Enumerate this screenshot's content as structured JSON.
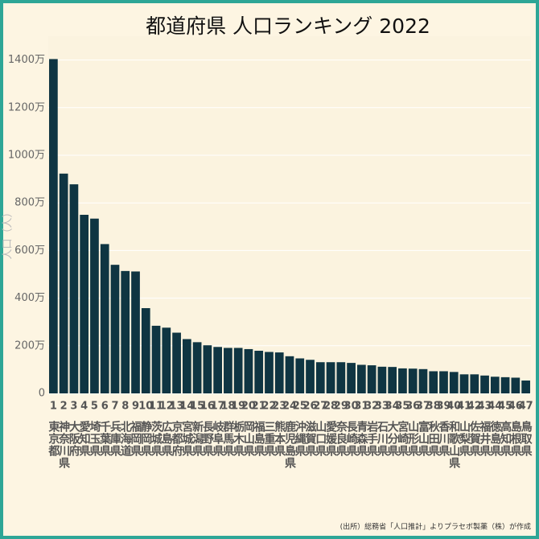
{
  "chart_data": {
    "type": "bar",
    "title": "都道府県 人口ランキング 2022",
    "y_label": "人口（人）",
    "source": "(出所）総務省「人口推計」よりプラセボ製薬（株）が作成",
    "ranks": [
      1,
      2,
      3,
      4,
      5,
      6,
      7,
      8,
      9,
      10,
      11,
      12,
      13,
      14,
      15,
      16,
      17,
      18,
      19,
      20,
      21,
      22,
      23,
      24,
      25,
      26,
      27,
      28,
      29,
      30,
      31,
      32,
      33,
      34,
      35,
      36,
      37,
      38,
      39,
      40,
      41,
      42,
      43,
      44,
      45,
      46,
      47
    ],
    "categories": [
      "東京都",
      "神奈川県",
      "大阪府",
      "愛知県",
      "埼玉県",
      "千葉県",
      "兵庫県",
      "北海道",
      "福岡県",
      "静岡県",
      "茨城県",
      "広島県",
      "京都府",
      "宮城県",
      "新潟県",
      "長野県",
      "岐阜県",
      "群馬県",
      "栃木県",
      "岡山県",
      "福島県",
      "三重県",
      "熊本県",
      "鹿児島県",
      "沖縄県",
      "滋賀県",
      "山口県",
      "愛媛県",
      "奈良県",
      "長崎県",
      "青森県",
      "岩手県",
      "石川県",
      "大分県",
      "宮崎県",
      "山形県",
      "富山県",
      "秋田県",
      "香川県",
      "和歌山県",
      "山梨県",
      "佐賀県",
      "福井県",
      "徳島県",
      "高知県",
      "島根県",
      "鳥取県"
    ],
    "values": [
      1404,
      923,
      878,
      750,
      734,
      627,
      540,
      514,
      512,
      358,
      284,
      276,
      255,
      228,
      215,
      202,
      195,
      191,
      191,
      186,
      179,
      174,
      172,
      156,
      147,
      141,
      131,
      131,
      131,
      128,
      120,
      118,
      112,
      111,
      105,
      104,
      102,
      93,
      93,
      90,
      80,
      80,
      75,
      70,
      68,
      66,
      54
    ],
    "color": "#0f3542",
    "ylim": [
      0,
      1500
    ],
    "yticks": [
      {
        "value": 0,
        "label": "0"
      },
      {
        "value": 200,
        "label": "200万"
      },
      {
        "value": 400,
        "label": "400万"
      },
      {
        "value": 600,
        "label": "600万"
      },
      {
        "value": 800,
        "label": "800万"
      },
      {
        "value": 1000,
        "label": "1000万"
      },
      {
        "value": 1200,
        "label": "1200万"
      },
      {
        "value": 1400,
        "label": "1400万"
      }
    ],
    "grid": true
  }
}
